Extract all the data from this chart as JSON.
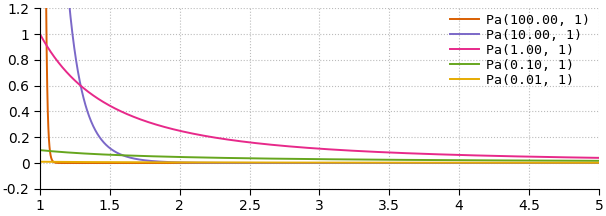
{
  "xlim": [
    1,
    5
  ],
  "ylim": [
    -0.2,
    1.2
  ],
  "xticks": [
    1,
    1.5,
    2,
    2.5,
    3,
    3.5,
    4,
    4.5,
    5
  ],
  "yticks": [
    -0.2,
    0,
    0.2,
    0.4,
    0.6,
    0.8,
    1.0,
    1.2
  ],
  "ytick_labels": [
    "-0.2",
    "0",
    "0.2",
    "0.4",
    "0.6",
    "0.8",
    "1",
    "1.2"
  ],
  "xtick_labels": [
    "1",
    "1.5",
    "2",
    "2.5",
    "3",
    "3.5",
    "4",
    "4.5",
    "5"
  ],
  "series": [
    {
      "alpha": 100.0,
      "xm": 1,
      "label": "Pa(100.00, 1)",
      "color": "#d95f02"
    },
    {
      "alpha": 10.0,
      "xm": 1,
      "label": "Pa(10.00, 1)",
      "color": "#7b68c8"
    },
    {
      "alpha": 1.0,
      "xm": 1,
      "label": "Pa(1.00, 1)",
      "color": "#e7298a"
    },
    {
      "alpha": 0.1,
      "xm": 1,
      "label": "Pa(0.10, 1)",
      "color": "#66a61e"
    },
    {
      "alpha": 0.01,
      "xm": 1,
      "label": "Pa(0.01, 1)",
      "color": "#e6ab02"
    }
  ],
  "background_color": "#ffffff",
  "grid_color": "#bbbbbb",
  "figsize": [
    6.06,
    2.16
  ],
  "dpi": 100,
  "legend_fontsize": 9.5,
  "tick_fontsize": 10,
  "linewidth": 1.4
}
